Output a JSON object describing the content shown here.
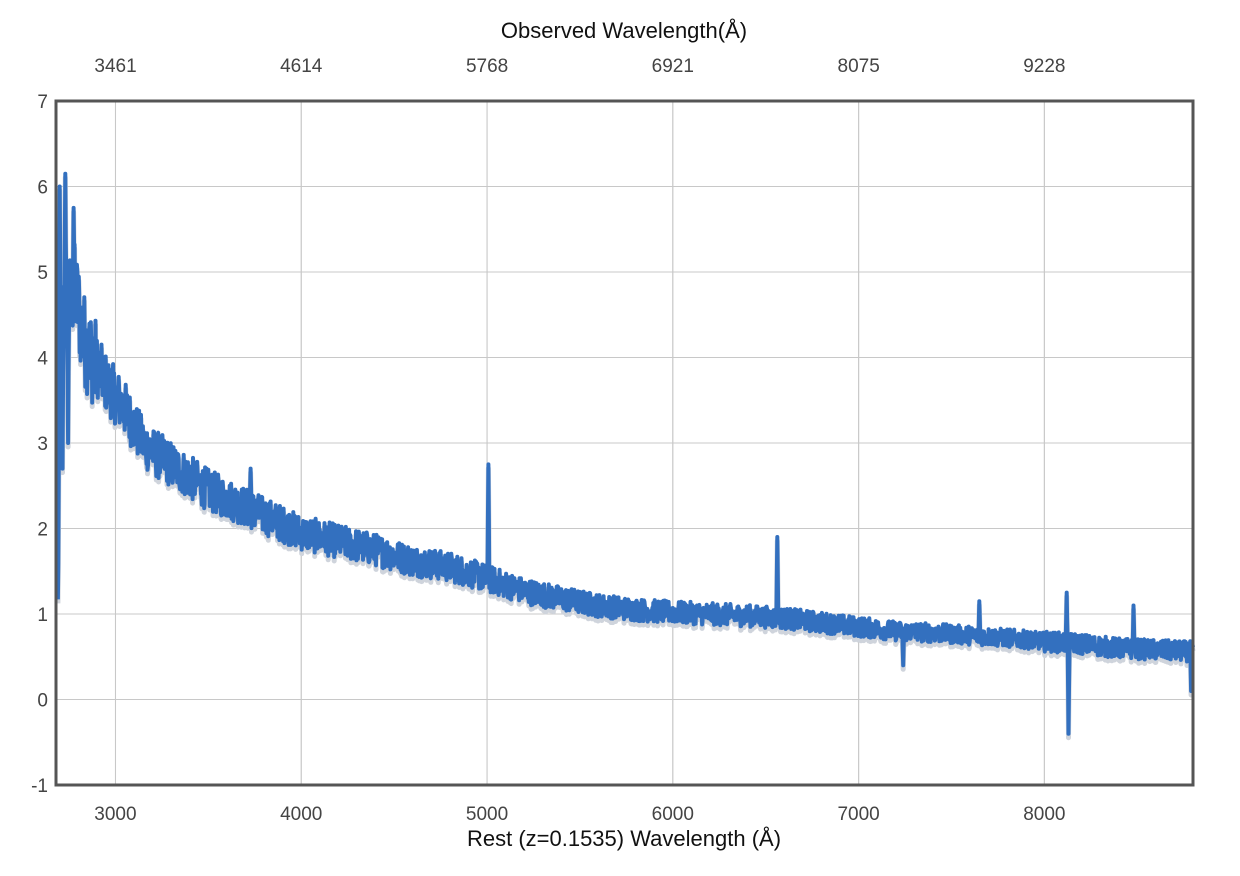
{
  "chart_data": {
    "type": "line",
    "xlabel": "Rest (z=0.1535) Wavelength (Å)",
    "x2label": "Observed Wavelength(Å)",
    "xlim": [
      2680,
      8800
    ],
    "ylim": [
      -1,
      7
    ],
    "x_ticks": [
      3000,
      4000,
      5000,
      6000,
      7000,
      8000
    ],
    "x_tick_labels": [
      "3000",
      "4000",
      "5000",
      "6000",
      "7000",
      "8000"
    ],
    "x2_ticks": [
      3461,
      4614,
      5768,
      6921,
      8075,
      9228
    ],
    "x2_tick_labels": [
      "3461",
      "4614",
      "5768",
      "6921",
      "8075",
      "9228"
    ],
    "redshift": 0.1535,
    "y_ticks": [
      -1,
      0,
      1,
      2,
      3,
      4,
      5,
      6,
      7
    ],
    "y_tick_labels": [
      "-1",
      "0",
      "1",
      "2",
      "3",
      "4",
      "5",
      "6",
      "7"
    ],
    "grid": true,
    "series": [
      {
        "color": "#3370bf",
        "x": [
          2690,
          2700,
          2720,
          2740,
          2760,
          2780,
          2800,
          2820,
          2850,
          2900,
          2950,
          3000,
          3050,
          3100,
          3150,
          3200,
          3300,
          3400,
          3500,
          3600,
          3700,
          3800,
          3900,
          4000,
          4200,
          4400,
          4600,
          4800,
          4950,
          5050,
          5200,
          5400,
          5600,
          5800,
          6000,
          6200,
          6400,
          6600,
          6800,
          7000,
          7200,
          7400,
          7600,
          7800,
          8000,
          8200,
          8400,
          8600,
          8800
        ],
        "y": [
          1.0,
          4.2,
          4.5,
          4.6,
          4.7,
          4.8,
          4.6,
          4.3,
          4.1,
          3.9,
          3.7,
          3.55,
          3.4,
          3.2,
          3.0,
          2.9,
          2.75,
          2.6,
          2.45,
          2.35,
          2.25,
          2.15,
          2.05,
          1.95,
          1.85,
          1.75,
          1.62,
          1.55,
          1.45,
          1.38,
          1.27,
          1.18,
          1.1,
          1.05,
          1.02,
          1.0,
          0.98,
          0.95,
          0.9,
          0.85,
          0.8,
          0.78,
          0.75,
          0.72,
          0.68,
          0.65,
          0.6,
          0.58,
          0.56
        ],
        "features": [
          {
            "x": 2700,
            "y": 6.0
          },
          {
            "x": 2715,
            "y": 2.7
          },
          {
            "x": 2730,
            "y": 6.15
          },
          {
            "x": 2745,
            "y": 3.0
          },
          {
            "x": 2775,
            "y": 5.75
          },
          {
            "x": 3727,
            "y": 2.7
          },
          {
            "x": 5007,
            "y": 2.75
          },
          {
            "x": 6563,
            "y": 1.9
          },
          {
            "x": 7240,
            "y": 0.4
          },
          {
            "x": 7650,
            "y": 1.15
          },
          {
            "x": 8120,
            "y": 1.25
          },
          {
            "x": 8130,
            "y": -0.4
          },
          {
            "x": 8480,
            "y": 1.1
          },
          {
            "x": 8790,
            "y": 0.1
          }
        ]
      }
    ]
  }
}
